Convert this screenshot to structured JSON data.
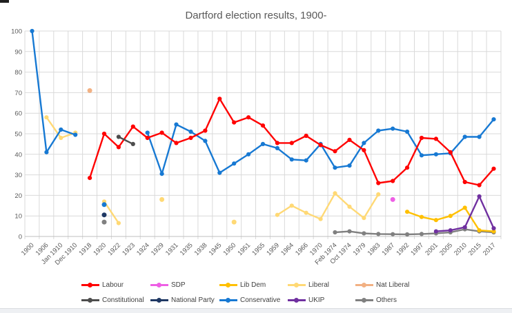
{
  "chart_data": {
    "type": "line",
    "title": "Dartford election results, 1900-",
    "xlabel": "",
    "ylabel": "",
    "grid": true,
    "legend_position": "bottom",
    "y_axis": {
      "min": 0,
      "max": 100,
      "step": 10
    },
    "categories": [
      "1900",
      "1906",
      "Jan 1910",
      "Dec 1910",
      "1918",
      "1920",
      "1922",
      "1923",
      "1924",
      "1929",
      "1931",
      "1935",
      "1938",
      "1945",
      "1950",
      "1951",
      "1955",
      "1959",
      "1964",
      "1966",
      "1970",
      "Feb 1974",
      "Oct 1974",
      "1979",
      "1983",
      "1987",
      "1992",
      "1997",
      "2001",
      "2005",
      "2010",
      "2015",
      "2017"
    ],
    "legend_rows": [
      [
        0,
        1,
        2,
        3,
        4
      ],
      [
        5,
        6,
        7,
        8,
        9
      ]
    ],
    "series": [
      {
        "name": "Labour",
        "color": "#FF0000",
        "values": [
          null,
          null,
          null,
          null,
          28.5,
          50,
          43.5,
          53.5,
          48,
          50.5,
          45.5,
          48,
          51.5,
          67,
          55.5,
          58,
          54,
          45.5,
          45.5,
          49,
          44.5,
          41.5,
          47,
          42,
          26,
          27,
          33.5,
          48,
          47.5,
          41,
          26.5,
          25,
          33
        ]
      },
      {
        "name": "SDP",
        "color": "#EE5FE5",
        "values": [
          null,
          null,
          null,
          null,
          null,
          null,
          null,
          null,
          null,
          null,
          null,
          null,
          null,
          null,
          null,
          null,
          null,
          null,
          null,
          null,
          null,
          null,
          null,
          null,
          null,
          18,
          null,
          null,
          null,
          null,
          null,
          null,
          null
        ]
      },
      {
        "name": "Lib Dem",
        "color": "#FFC000",
        "values": [
          null,
          null,
          null,
          null,
          null,
          null,
          null,
          null,
          null,
          null,
          null,
          null,
          null,
          null,
          null,
          null,
          null,
          null,
          null,
          null,
          null,
          null,
          null,
          null,
          null,
          null,
          12,
          9.5,
          8,
          10,
          14,
          3,
          2.5
        ]
      },
      {
        "name": "Liberal",
        "color": "#FFD975",
        "values": [
          null,
          58,
          48,
          50.5,
          null,
          17,
          6.5,
          null,
          null,
          18,
          null,
          null,
          null,
          null,
          7,
          null,
          null,
          10.5,
          15,
          11.5,
          8.5,
          21,
          14.5,
          9,
          20.5,
          null,
          null,
          null,
          null,
          null,
          null,
          null,
          null
        ]
      },
      {
        "name": "Nat Liberal",
        "color": "#F2B183",
        "values": [
          null,
          null,
          null,
          null,
          71,
          null,
          null,
          null,
          null,
          null,
          null,
          null,
          null,
          null,
          null,
          null,
          null,
          null,
          null,
          null,
          null,
          null,
          null,
          null,
          null,
          null,
          null,
          null,
          null,
          null,
          null,
          null,
          null
        ]
      },
      {
        "name": "Constitutional",
        "color": "#4D4D4D",
        "values": [
          null,
          null,
          null,
          null,
          null,
          null,
          48.5,
          45,
          null,
          null,
          null,
          null,
          null,
          null,
          null,
          null,
          null,
          null,
          null,
          null,
          null,
          null,
          null,
          null,
          null,
          null,
          null,
          null,
          null,
          null,
          null,
          null,
          null
        ]
      },
      {
        "name": "National Party",
        "color": "#1F3864",
        "values": [
          null,
          null,
          null,
          null,
          null,
          10.5,
          null,
          null,
          null,
          null,
          null,
          null,
          null,
          null,
          null,
          null,
          null,
          null,
          null,
          null,
          null,
          null,
          null,
          null,
          null,
          null,
          null,
          null,
          null,
          null,
          null,
          null,
          null
        ]
      },
      {
        "name": "Conservative",
        "color": "#1779D3",
        "values": [
          100,
          41,
          52,
          49.5,
          null,
          15.5,
          null,
          null,
          50.5,
          30.5,
          54.5,
          51,
          46.5,
          31,
          35.5,
          40,
          45,
          43,
          37.5,
          37,
          45,
          33.5,
          34.5,
          45.5,
          51.5,
          52.5,
          51,
          39.5,
          40,
          40.5,
          48.5,
          48.5,
          57
        ]
      },
      {
        "name": "UKIP",
        "color": "#7030A0",
        "values": [
          null,
          null,
          null,
          null,
          null,
          null,
          null,
          null,
          null,
          null,
          null,
          null,
          null,
          null,
          null,
          null,
          null,
          null,
          null,
          null,
          null,
          null,
          null,
          null,
          null,
          null,
          null,
          null,
          2.5,
          3,
          4.5,
          19.5,
          4
        ]
      },
      {
        "name": "Others",
        "color": "#808080",
        "values": [
          null,
          null,
          null,
          null,
          null,
          7,
          null,
          null,
          null,
          null,
          null,
          null,
          null,
          null,
          null,
          null,
          null,
          null,
          null,
          null,
          null,
          2,
          2.5,
          1.5,
          1.2,
          1.1,
          1,
          1.2,
          1.5,
          2,
          3.5,
          2.5,
          2
        ]
      }
    ],
    "colors": {
      "gridline": "#D9D9D9",
      "axis_line": "#BFBFBF",
      "axis_label": "#595959",
      "title": "#595959",
      "legend_label": "#404040"
    }
  }
}
